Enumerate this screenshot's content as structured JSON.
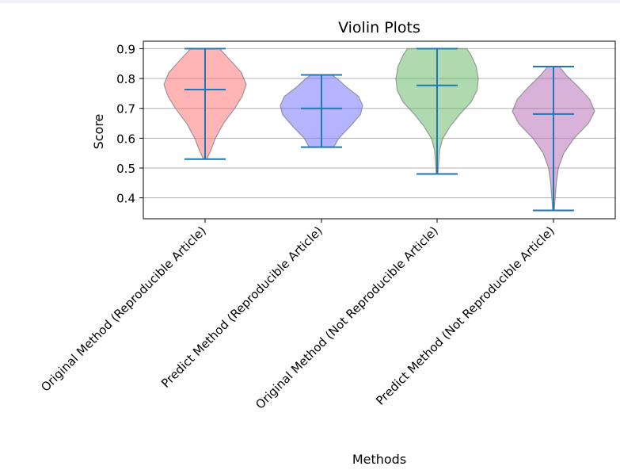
{
  "chart_data": {
    "type": "violin",
    "title": "Violin Plots",
    "xlabel": "Methods",
    "ylabel": "Score",
    "ylim": [
      0.33,
      0.925
    ],
    "yticks": [
      0.4,
      0.5,
      0.6,
      0.7,
      0.8,
      0.9
    ],
    "grid": "horizontal",
    "categories": [
      "Original Method (Reproducible Article)",
      "Predict Method (Reproducible Article)",
      "Original Method (Not Reproducible Article)",
      "Predict Method (Not Reproducible Article)"
    ],
    "series": [
      {
        "category": "Original Method (Reproducible Article)",
        "color": "#ff6b6b",
        "min": 0.53,
        "mean": 0.763,
        "max": 0.9,
        "density": [
          [
            0.53,
            0.04
          ],
          [
            0.56,
            0.14
          ],
          [
            0.6,
            0.25
          ],
          [
            0.65,
            0.45
          ],
          [
            0.7,
            0.72
          ],
          [
            0.74,
            0.9
          ],
          [
            0.78,
            1.0
          ],
          [
            0.82,
            0.88
          ],
          [
            0.86,
            0.62
          ],
          [
            0.9,
            0.35
          ]
        ]
      },
      {
        "category": "Predict Method (Reproducible Article)",
        "color": "#6b6bff",
        "min": 0.57,
        "mean": 0.7,
        "max": 0.812,
        "density": [
          [
            0.57,
            0.3
          ],
          [
            0.6,
            0.42
          ],
          [
            0.64,
            0.7
          ],
          [
            0.68,
            0.95
          ],
          [
            0.71,
            1.0
          ],
          [
            0.74,
            0.9
          ],
          [
            0.77,
            0.62
          ],
          [
            0.8,
            0.38
          ],
          [
            0.812,
            0.25
          ]
        ]
      },
      {
        "category": "Original Method (Not Reproducible Article)",
        "color": "#5fb65f",
        "min": 0.48,
        "mean": 0.777,
        "max": 0.9,
        "density": [
          [
            0.48,
            0.02
          ],
          [
            0.52,
            0.04
          ],
          [
            0.56,
            0.06
          ],
          [
            0.6,
            0.14
          ],
          [
            0.64,
            0.32
          ],
          [
            0.68,
            0.55
          ],
          [
            0.72,
            0.82
          ],
          [
            0.76,
            0.97
          ],
          [
            0.8,
            1.0
          ],
          [
            0.84,
            0.95
          ],
          [
            0.88,
            0.82
          ],
          [
            0.9,
            0.72
          ]
        ]
      },
      {
        "category": "Predict Method (Not Reproducible Article)",
        "color": "#b266b2",
        "min": 0.358,
        "mean": 0.681,
        "max": 0.84,
        "density": [
          [
            0.358,
            0.02
          ],
          [
            0.4,
            0.04
          ],
          [
            0.45,
            0.07
          ],
          [
            0.5,
            0.12
          ],
          [
            0.55,
            0.25
          ],
          [
            0.6,
            0.5
          ],
          [
            0.65,
            0.85
          ],
          [
            0.69,
            1.0
          ],
          [
            0.73,
            0.88
          ],
          [
            0.77,
            0.62
          ],
          [
            0.81,
            0.32
          ],
          [
            0.84,
            0.14
          ]
        ]
      }
    ]
  }
}
